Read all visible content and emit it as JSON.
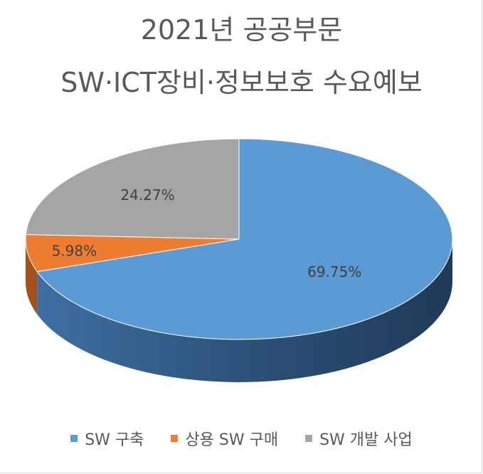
{
  "title_line1": "2021년 공공부문",
  "title_line2": "SW·ICT장비·정보보호 수요예보",
  "chart_data": {
    "type": "pie",
    "style": "3d",
    "categories": [
      "SW 구축",
      "상용 SW 구매",
      "SW 개발 사업"
    ],
    "values": [
      69.75,
      5.98,
      24.27
    ],
    "data_labels": [
      "69.75%",
      "5.98%",
      "24.27%"
    ],
    "colors": [
      "#5b9bd5",
      "#ed7d31",
      "#a5a5a5"
    ],
    "side_colors": [
      "#2f5f8f",
      "#a3501a",
      "#6e6e6e"
    ],
    "legend_placement": "bottom"
  }
}
